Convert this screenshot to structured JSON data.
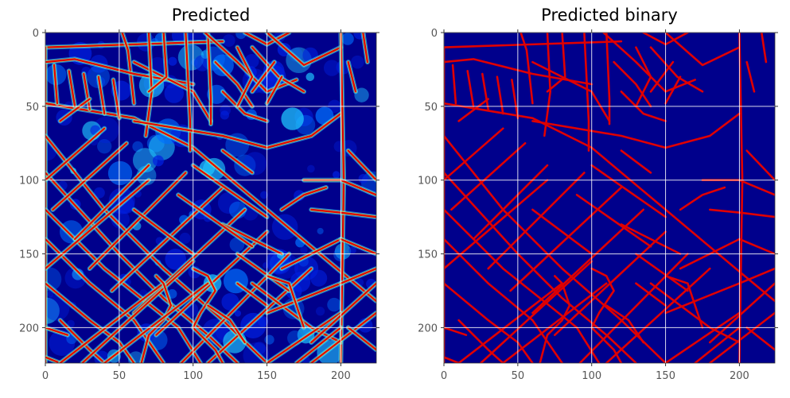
{
  "chart_data": [
    {
      "type": "heatmap",
      "title": "Predicted",
      "colormap": "jet",
      "xlim": [
        0,
        224
      ],
      "ylim": [
        224,
        0
      ],
      "xticks": [
        0,
        50,
        100,
        150,
        200
      ],
      "yticks": [
        0,
        50,
        100,
        150,
        200
      ],
      "grid": true,
      "xlabel": "",
      "ylabel": ""
    },
    {
      "type": "heatmap",
      "title": "Predicted binary",
      "colormap": "jet",
      "xlim": [
        0,
        224
      ],
      "ylim": [
        224,
        0
      ],
      "xticks": [
        0,
        50,
        100,
        150,
        200
      ],
      "yticks": [
        0,
        50,
        100,
        150,
        200
      ],
      "grid": true,
      "xlabel": "",
      "ylabel": ""
    }
  ],
  "roads": [
    [
      [
        0,
        10
      ],
      [
        120,
        6
      ]
    ],
    [
      [
        0,
        10
      ],
      [
        0,
        224
      ]
    ],
    [
      [
        0,
        48
      ],
      [
        60,
        58
      ],
      [
        100,
        78
      ],
      [
        150,
        120
      ],
      [
        200,
        162
      ],
      [
        224,
        182
      ]
    ],
    [
      [
        52,
        0
      ],
      [
        56,
        12
      ],
      [
        60,
        48
      ]
    ],
    [
      [
        0,
        20
      ],
      [
        20,
        18
      ],
      [
        60,
        28
      ],
      [
        100,
        35
      ]
    ],
    [
      [
        6,
        22
      ],
      [
        8,
        48
      ]
    ],
    [
      [
        16,
        26
      ],
      [
        20,
        50
      ]
    ],
    [
      [
        26,
        28
      ],
      [
        30,
        52
      ]
    ],
    [
      [
        36,
        30
      ],
      [
        40,
        55
      ]
    ],
    [
      [
        46,
        32
      ],
      [
        50,
        58
      ]
    ],
    [
      [
        60,
        20
      ],
      [
        100,
        40
      ],
      [
        112,
        60
      ]
    ],
    [
      [
        70,
        0
      ],
      [
        72,
        40
      ],
      [
        68,
        70
      ]
    ],
    [
      [
        80,
        0
      ],
      [
        82,
        30
      ],
      [
        70,
        40
      ]
    ],
    [
      [
        95,
        0
      ],
      [
        98,
        60
      ],
      [
        98,
        80
      ]
    ],
    [
      [
        110,
        0
      ],
      [
        112,
        45
      ],
      [
        112,
        62
      ]
    ],
    [
      [
        108,
        0
      ],
      [
        130,
        20
      ],
      [
        150,
        40
      ],
      [
        170,
        32
      ]
    ],
    [
      [
        115,
        20
      ],
      [
        130,
        35
      ],
      [
        140,
        50
      ]
    ],
    [
      [
        120,
        40
      ],
      [
        135,
        55
      ],
      [
        150,
        60
      ]
    ],
    [
      [
        135,
        0
      ],
      [
        150,
        8
      ],
      [
        165,
        0
      ]
    ],
    [
      [
        140,
        10
      ],
      [
        158,
        30
      ],
      [
        175,
        40
      ]
    ],
    [
      [
        150,
        0
      ],
      [
        175,
        22
      ],
      [
        200,
        10
      ]
    ],
    [
      [
        130,
        10
      ],
      [
        140,
        30
      ],
      [
        130,
        50
      ]
    ],
    [
      [
        155,
        20
      ],
      [
        140,
        40
      ]
    ],
    [
      [
        160,
        30
      ],
      [
        150,
        48
      ]
    ],
    [
      [
        60,
        60
      ],
      [
        120,
        70
      ],
      [
        150,
        78
      ],
      [
        180,
        70
      ],
      [
        200,
        55
      ]
    ],
    [
      [
        200,
        0
      ],
      [
        202,
        100
      ],
      [
        200,
        224
      ]
    ],
    [
      [
        205,
        20
      ],
      [
        210,
        40
      ]
    ],
    [
      [
        215,
        0
      ],
      [
        218,
        20
      ]
    ],
    [
      [
        205,
        80
      ],
      [
        224,
        100
      ]
    ],
    [
      [
        175,
        100
      ],
      [
        200,
        100
      ],
      [
        224,
        110
      ]
    ],
    [
      [
        180,
        120
      ],
      [
        200,
        122
      ],
      [
        224,
        125
      ]
    ],
    [
      [
        0,
        70
      ],
      [
        40,
        120
      ],
      [
        80,
        160
      ],
      [
        120,
        195
      ],
      [
        150,
        224
      ]
    ],
    [
      [
        0,
        95
      ],
      [
        50,
        150
      ],
      [
        80,
        180
      ],
      [
        110,
        205
      ],
      [
        130,
        224
      ]
    ],
    [
      [
        0,
        120
      ],
      [
        40,
        160
      ],
      [
        90,
        200
      ],
      [
        105,
        224
      ]
    ],
    [
      [
        0,
        140
      ],
      [
        30,
        170
      ],
      [
        60,
        195
      ],
      [
        80,
        224
      ]
    ],
    [
      [
        0,
        170
      ],
      [
        30,
        195
      ],
      [
        50,
        210
      ],
      [
        60,
        224
      ]
    ],
    [
      [
        10,
        195
      ],
      [
        30,
        215
      ],
      [
        40,
        224
      ]
    ],
    [
      [
        0,
        220
      ],
      [
        10,
        224
      ]
    ],
    [
      [
        20,
        140
      ],
      [
        70,
        90
      ]
    ],
    [
      [
        30,
        160
      ],
      [
        95,
        95
      ]
    ],
    [
      [
        45,
        175
      ],
      [
        120,
        105
      ]
    ],
    [
      [
        60,
        190
      ],
      [
        135,
        120
      ]
    ],
    [
      [
        75,
        205
      ],
      [
        150,
        135
      ]
    ],
    [
      [
        92,
        224
      ],
      [
        165,
        150
      ]
    ],
    [
      [
        110,
        224
      ],
      [
        180,
        160
      ]
    ],
    [
      [
        5,
        120
      ],
      [
        55,
        75
      ]
    ],
    [
      [
        0,
        100
      ],
      [
        40,
        65
      ]
    ],
    [
      [
        10,
        60
      ],
      [
        30,
        45
      ]
    ],
    [
      [
        0,
        160
      ],
      [
        70,
        100
      ]
    ],
    [
      [
        25,
        224
      ],
      [
        100,
        155
      ]
    ],
    [
      [
        10,
        224
      ],
      [
        80,
        170
      ]
    ],
    [
      [
        120,
        130
      ],
      [
        160,
        150
      ]
    ],
    [
      [
        130,
        150
      ],
      [
        165,
        175
      ]
    ],
    [
      [
        140,
        170
      ],
      [
        180,
        200
      ],
      [
        200,
        210
      ]
    ],
    [
      [
        160,
        160
      ],
      [
        200,
        140
      ]
    ],
    [
      [
        150,
        190
      ],
      [
        200,
        170
      ]
    ],
    [
      [
        150,
        224
      ],
      [
        200,
        190
      ]
    ],
    [
      [
        170,
        224
      ],
      [
        200,
        200
      ]
    ],
    [
      [
        180,
        224
      ],
      [
        224,
        190
      ]
    ],
    [
      [
        180,
        210
      ],
      [
        224,
        170
      ]
    ],
    [
      [
        200,
        140
      ],
      [
        224,
        150
      ]
    ],
    [
      [
        200,
        170
      ],
      [
        224,
        160
      ]
    ],
    [
      [
        205,
        200
      ],
      [
        224,
        215
      ]
    ],
    [
      [
        100,
        160
      ],
      [
        110,
        165
      ],
      [
        115,
        175
      ],
      [
        105,
        190
      ],
      [
        100,
        200
      ],
      [
        115,
        215
      ],
      [
        120,
        224
      ]
    ],
    [
      [
        75,
        165
      ],
      [
        80,
        170
      ],
      [
        85,
        185
      ],
      [
        80,
        195
      ],
      [
        70,
        205
      ],
      [
        65,
        224
      ]
    ],
    [
      [
        150,
        165
      ],
      [
        165,
        170
      ],
      [
        170,
        185
      ],
      [
        175,
        200
      ]
    ],
    [
      [
        110,
        185
      ],
      [
        125,
        195
      ],
      [
        135,
        210
      ]
    ],
    [
      [
        130,
        170
      ],
      [
        150,
        185
      ]
    ],
    [
      [
        160,
        120
      ],
      [
        175,
        110
      ],
      [
        190,
        105
      ]
    ],
    [
      [
        0,
        200
      ],
      [
        15,
        205
      ]
    ],
    [
      [
        40,
        224
      ],
      [
        110,
        170
      ]
    ],
    [
      [
        60,
        120
      ],
      [
        100,
        150
      ]
    ],
    [
      [
        90,
        110
      ],
      [
        140,
        145
      ]
    ],
    [
      [
        100,
        90
      ],
      [
        150,
        125
      ]
    ],
    [
      [
        120,
        80
      ],
      [
        140,
        95
      ]
    ]
  ]
}
